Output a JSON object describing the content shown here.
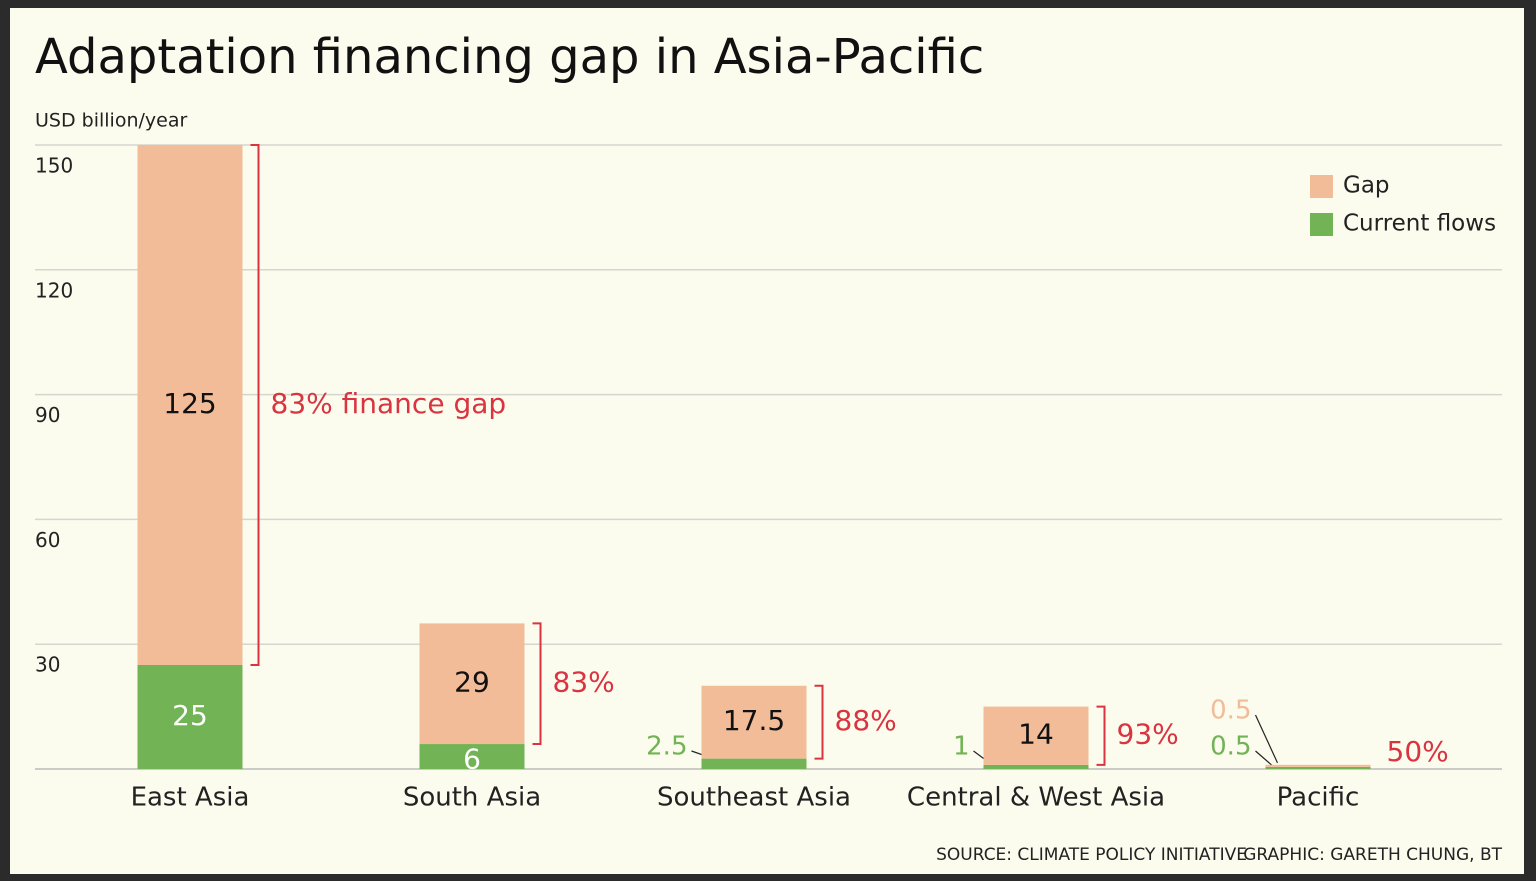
{
  "chart_data": {
    "type": "stacked-bar",
    "title": "Adaptation financing gap in Asia-Pacific",
    "y_label": "USD billion/year",
    "categories": [
      "East Asia",
      "South Asia",
      "Southeast Asia",
      "Central & West Asia",
      "Pacific"
    ],
    "series": [
      {
        "name": "Current flows",
        "color": "#72b355",
        "values": [
          25,
          6,
          2.5,
          1,
          0.5
        ]
      },
      {
        "name": "Gap",
        "color": "#f2bc98",
        "values": [
          125,
          29,
          17.5,
          14,
          0.5
        ]
      }
    ],
    "annotations": [
      "83% finance gap",
      "83%",
      "88%",
      "93%",
      "50%"
    ],
    "annotation_color": "#d9343f",
    "ylim": [
      0,
      150
    ],
    "yticks": [
      30,
      60,
      90,
      120,
      150
    ],
    "grid": true,
    "legend": "top-right",
    "source": "SOURCE: CLIMATE POLICY INITIATIVE",
    "credit": "GRAPHIC: GARETH CHUNG, BT"
  }
}
